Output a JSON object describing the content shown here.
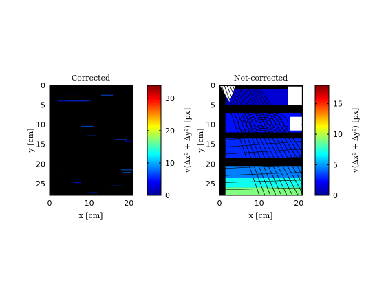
{
  "chart_data": [
    {
      "type": "heatmap",
      "title": "Corrected",
      "xlabel": "x [cm]",
      "ylabel": "y [cm]",
      "xlim": [
        0,
        21
      ],
      "ylim": [
        28,
        0
      ],
      "xticks": [
        "0",
        "10",
        "20"
      ],
      "yticks": [
        "0",
        "5",
        "10",
        "15",
        "20",
        "25"
      ],
      "xtick_values": [
        0,
        10,
        20
      ],
      "ytick_values": [
        0,
        5,
        10,
        15,
        20,
        25
      ],
      "colorbar": {
        "label": "√(Δx² + Δy²)  [px]",
        "range": [
          0,
          34
        ],
        "ticks": [
          "0",
          "10",
          "20",
          "30"
        ],
        "tick_values": [
          0,
          10,
          20,
          30
        ]
      },
      "background_value": 0,
      "colormap": "jet"
    },
    {
      "type": "heatmap",
      "title": "Not-corrected",
      "xlabel": "x [cm]",
      "ylabel": "y [cm]",
      "xlim": [
        0,
        21
      ],
      "ylim": [
        28,
        0
      ],
      "xticks": [
        "0",
        "10",
        "20"
      ],
      "yticks": [
        "0",
        "5",
        "10",
        "15",
        "20",
        "25"
      ],
      "xtick_values": [
        0,
        10,
        20
      ],
      "ytick_values": [
        0,
        5,
        10,
        15,
        20,
        25
      ],
      "colorbar": {
        "label": "√(Δx² + Δy²)  [px]",
        "range": [
          0,
          18
        ],
        "ticks": [
          "0",
          "5",
          "10",
          "15"
        ],
        "tick_values": [
          0,
          5,
          10,
          15
        ]
      },
      "colormap": "jet",
      "regions": [
        {
          "y": [
            1,
            5
          ],
          "value": 1.5
        },
        {
          "y": [
            7,
            12
          ],
          "value": 2.5
        },
        {
          "y": [
            13.5,
            18.5
          ],
          "value": 3
        },
        {
          "y": [
            20.5,
            23.5
          ],
          "value": 4.5
        },
        {
          "y": [
            23.5,
            26
          ],
          "value": 7
        },
        {
          "y": [
            26,
            28
          ],
          "value": 9
        }
      ]
    }
  ]
}
